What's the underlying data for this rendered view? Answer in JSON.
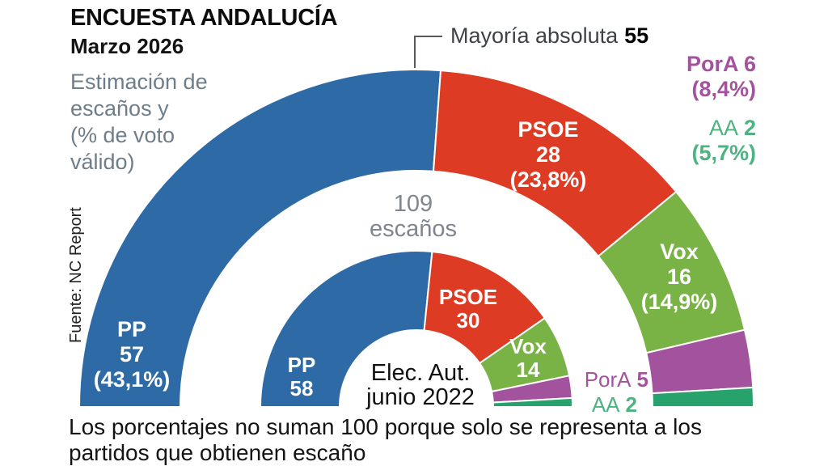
{
  "header": {
    "title": "ENCUESTA ANDALUCÍA",
    "date": "Marzo 2026",
    "description": "Estimación de\nescaños y\n(% de voto\nválido)",
    "source": "Fuente: NC Report"
  },
  "majority": {
    "label": "Mayoría absoluta",
    "value": "55"
  },
  "center_note": "109\nescaños",
  "inner_note": "Elec. Aut.\njunio 2022",
  "footnote": "Los porcentajes no suman 100 porque solo se representa a los\npartidos que obtienen escaño",
  "colors": {
    "PP": "#2e6ba6",
    "PSOE": "#dd3b24",
    "Vox": "#79b245",
    "PorA": "#a3539e",
    "AA": "#27a26c",
    "AA_text": "#4cb381",
    "PorA_text": "#a3539e",
    "gray_text": "#6e7d8a",
    "leader_line": "#5a5a5a"
  },
  "chart_data": {
    "type": "parliament-donut",
    "title": "Encuesta Andalucía — Marzo 2026",
    "total_seats": 109,
    "majority_seats": 55,
    "rings": [
      {
        "name": "Estimación de escaños marzo 2026",
        "position": "outer",
        "data": [
          {
            "party": "PP",
            "seats": 57,
            "vote_pct": "43,1%",
            "color": "#2e6ba6"
          },
          {
            "party": "PSOE",
            "seats": 28,
            "vote_pct": "23,8%",
            "color": "#dd3b24"
          },
          {
            "party": "Vox",
            "seats": 16,
            "vote_pct": "14,9%",
            "color": "#79b245"
          },
          {
            "party": "PorA",
            "seats": 6,
            "vote_pct": "8,4%",
            "color": "#a3539e"
          },
          {
            "party": "AA",
            "seats": 2,
            "vote_pct": "5,7%",
            "color": "#27a26c"
          }
        ]
      },
      {
        "name": "Elec. Aut. junio 2022",
        "position": "inner",
        "data": [
          {
            "party": "PP",
            "seats": 58,
            "color": "#2e6ba6"
          },
          {
            "party": "PSOE",
            "seats": 30,
            "color": "#dd3b24"
          },
          {
            "party": "Vox",
            "seats": 14,
            "color": "#79b245"
          },
          {
            "party": "PorA",
            "seats": 5,
            "color": "#a3539e"
          },
          {
            "party": "AA",
            "seats": 2,
            "color": "#27a26c"
          }
        ]
      }
    ]
  },
  "labels": {
    "pp_outer": "PP\n57\n(43,1%)",
    "psoe_outer": "PSOE\n28\n(23,8%)",
    "vox_outer": "Vox\n16\n(14,9%)",
    "pora_outer": "PorA 6\n(8,4%)",
    "aa_outer_name": "AA",
    "aa_outer_value": "2",
    "aa_outer_pct": "(5,7%)",
    "pp_inner": "PP\n58",
    "psoe_inner": "PSOE\n30",
    "vox_inner": "Vox\n14",
    "pora_inner_name": "PorA",
    "pora_inner_value": "5",
    "aa_inner_name": "AA",
    "aa_inner_value": "2"
  }
}
